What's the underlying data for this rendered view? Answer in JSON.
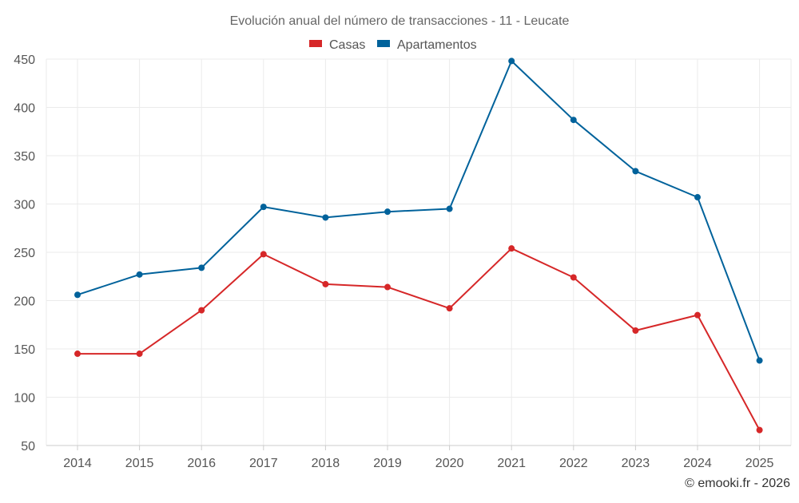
{
  "chart_data": {
    "type": "line",
    "title": "Evolución anual del número de transacciones - 11 - Leucate",
    "categories": [
      "2014",
      "2015",
      "2016",
      "2017",
      "2018",
      "2019",
      "2020",
      "2021",
      "2022",
      "2023",
      "2024",
      "2025"
    ],
    "series": [
      {
        "name": "Casas",
        "color": "#d62728",
        "values": [
          145,
          145,
          190,
          248,
          217,
          214,
          192,
          254,
          224,
          169,
          185,
          66
        ]
      },
      {
        "name": "Apartamentos",
        "color": "#00629b",
        "values": [
          206,
          227,
          234,
          297,
          286,
          292,
          295,
          448,
          387,
          334,
          307,
          138
        ]
      }
    ],
    "ylim": [
      50,
      450
    ],
    "yticks": [
      "50",
      "100",
      "150",
      "200",
      "250",
      "300",
      "350",
      "400",
      "450"
    ],
    "xlabel": "",
    "ylabel": "",
    "grid": true,
    "legend_position": "top-center"
  },
  "footer": {
    "credit": "© emooki.fr - 2026"
  }
}
